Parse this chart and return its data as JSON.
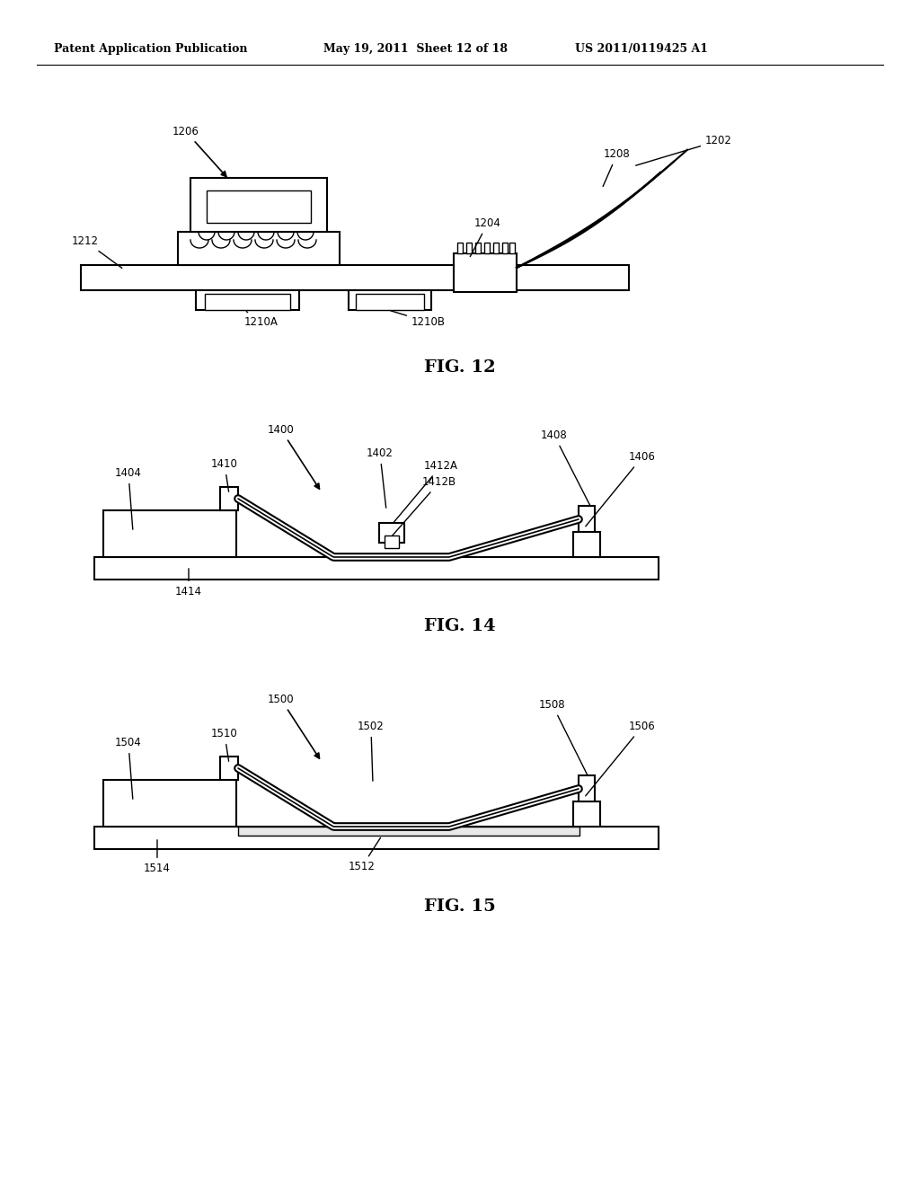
{
  "bg_color": "#ffffff",
  "line_color": "#000000",
  "header_text": "Patent Application Publication",
  "header_date": "May 19, 2011  Sheet 12 of 18",
  "header_patent": "US 2011/0119425 A1",
  "fig12_label": "FIG. 12",
  "fig14_label": "FIG. 14",
  "fig15_label": "FIG. 15"
}
